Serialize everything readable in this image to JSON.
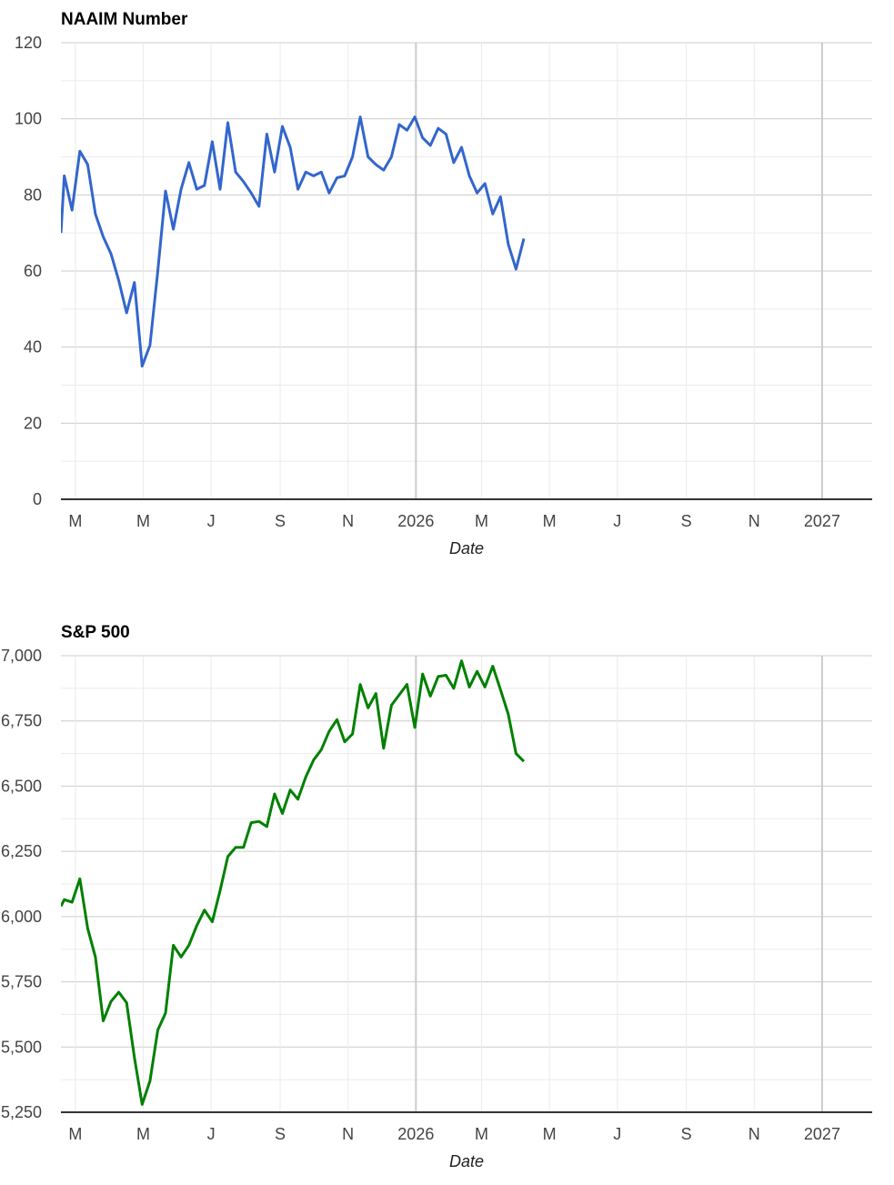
{
  "chart_data": [
    {
      "type": "line",
      "title": "NAAIM Number",
      "xlabel": "Date",
      "ylabel": "",
      "color": "#3366cc",
      "ylim": [
        0,
        120
      ],
      "yticks": [
        "0",
        "20",
        "40",
        "60",
        "80",
        "100",
        "120"
      ],
      "xlim": [
        "2025-02-16",
        "2027-02-15"
      ],
      "xticks": [
        {
          "date": "2025-03-01",
          "label": "M"
        },
        {
          "date": "2025-05-01",
          "label": "M"
        },
        {
          "date": "2025-07-01",
          "label": "J"
        },
        {
          "date": "2025-09-01",
          "label": "S"
        },
        {
          "date": "2025-11-01",
          "label": "N"
        },
        {
          "date": "2026-01-01",
          "label": "2026"
        },
        {
          "date": "2026-03-01",
          "label": "M"
        },
        {
          "date": "2026-05-01",
          "label": "M"
        },
        {
          "date": "2026-07-01",
          "label": "J"
        },
        {
          "date": "2026-09-01",
          "label": "S"
        },
        {
          "date": "2026-11-01",
          "label": "N"
        },
        {
          "date": "2027-01-01",
          "label": "2027"
        }
      ],
      "grid": true,
      "x": [
        "2025-02-16",
        "2025-02-19",
        "2025-02-26",
        "2025-03-05",
        "2025-03-12",
        "2025-03-19",
        "2025-03-26",
        "2025-04-02",
        "2025-04-09",
        "2025-04-16",
        "2025-04-23",
        "2025-04-30",
        "2025-05-07",
        "2025-05-14",
        "2025-05-21",
        "2025-05-28",
        "2025-06-04",
        "2025-06-11",
        "2025-06-18",
        "2025-06-25",
        "2025-07-02",
        "2025-07-09",
        "2025-07-16",
        "2025-07-23",
        "2025-07-30",
        "2025-08-06",
        "2025-08-13",
        "2025-08-20",
        "2025-08-27",
        "2025-09-03",
        "2025-09-10",
        "2025-09-17",
        "2025-09-24",
        "2025-10-01",
        "2025-10-08",
        "2025-10-15",
        "2025-10-22",
        "2025-10-29",
        "2025-11-05",
        "2025-11-12",
        "2025-11-19",
        "2025-11-26",
        "2025-12-03",
        "2025-12-10",
        "2025-12-17",
        "2025-12-24",
        "2025-12-31",
        "2026-01-07",
        "2026-01-14",
        "2026-01-21",
        "2026-01-28",
        "2026-02-04",
        "2026-02-11",
        "2026-02-18",
        "2026-02-25",
        "2026-03-04",
        "2026-03-11",
        "2026-03-18",
        "2026-03-25",
        "2026-04-01",
        "2026-04-08"
      ],
      "series": [
        {
          "values": [
            70,
            85,
            76,
            91.5,
            88,
            75,
            69,
            64.5,
            57.5,
            49,
            57,
            35,
            40.5,
            60,
            81,
            71,
            81.5,
            88.5,
            81.5,
            82.5,
            94,
            81.5,
            99,
            86,
            83.5,
            80.5,
            77,
            96,
            86,
            98,
            92.5,
            81.5,
            86,
            85,
            86,
            80.5,
            84.5,
            85,
            90,
            100.5,
            90,
            88,
            86.5,
            90,
            98.5,
            97,
            100.5,
            95,
            93,
            97.5,
            96,
            88.5,
            92.5,
            85,
            80.5,
            83,
            75,
            79.5,
            67,
            60.5,
            68.5
          ]
        }
      ]
    },
    {
      "type": "line",
      "title": "S&P 500",
      "xlabel": "Date",
      "ylabel": "",
      "color": "#008000",
      "ylim": [
        5250,
        7000
      ],
      "yticks": [
        "5,250",
        "5,500",
        "5,750",
        "6,000",
        "6,250",
        "6,500",
        "6,750",
        "7,000"
      ],
      "xlim": [
        "2025-02-16",
        "2027-02-15"
      ],
      "xticks": [
        {
          "date": "2025-03-01",
          "label": "M"
        },
        {
          "date": "2025-05-01",
          "label": "M"
        },
        {
          "date": "2025-07-01",
          "label": "J"
        },
        {
          "date": "2025-09-01",
          "label": "S"
        },
        {
          "date": "2025-11-01",
          "label": "N"
        },
        {
          "date": "2026-01-01",
          "label": "2026"
        },
        {
          "date": "2026-03-01",
          "label": "M"
        },
        {
          "date": "2026-05-01",
          "label": "M"
        },
        {
          "date": "2026-07-01",
          "label": "J"
        },
        {
          "date": "2026-09-01",
          "label": "S"
        },
        {
          "date": "2026-11-01",
          "label": "N"
        },
        {
          "date": "2027-01-01",
          "label": "2027"
        }
      ],
      "grid": true,
      "x": [
        "2025-02-16",
        "2025-02-19",
        "2025-02-26",
        "2025-03-05",
        "2025-03-12",
        "2025-03-19",
        "2025-03-26",
        "2025-04-02",
        "2025-04-09",
        "2025-04-16",
        "2025-04-23",
        "2025-04-30",
        "2025-05-07",
        "2025-05-14",
        "2025-05-21",
        "2025-05-28",
        "2025-06-04",
        "2025-06-11",
        "2025-06-18",
        "2025-06-25",
        "2025-07-02",
        "2025-07-09",
        "2025-07-16",
        "2025-07-23",
        "2025-07-30",
        "2025-08-06",
        "2025-08-13",
        "2025-08-20",
        "2025-08-27",
        "2025-09-03",
        "2025-09-10",
        "2025-09-17",
        "2025-09-24",
        "2025-10-01",
        "2025-10-08",
        "2025-10-15",
        "2025-10-22",
        "2025-10-29",
        "2025-11-05",
        "2025-11-12",
        "2025-11-19",
        "2025-11-26",
        "2025-12-03",
        "2025-12-10",
        "2025-12-17",
        "2025-12-24",
        "2025-12-31",
        "2026-01-07",
        "2026-01-14",
        "2026-01-21",
        "2026-01-28",
        "2026-02-04",
        "2026-02-11",
        "2026-02-18",
        "2026-02-25",
        "2026-03-04",
        "2026-03-11",
        "2026-03-18",
        "2026-03-25",
        "2026-04-01",
        "2026-04-08"
      ],
      "series": [
        {
          "values": [
            6040,
            6065,
            6055,
            6145,
            5955,
            5845,
            5600,
            5675,
            5710,
            5670,
            5460,
            5280,
            5370,
            5565,
            5630,
            5890,
            5845,
            5890,
            5965,
            6025,
            5980,
            6100,
            6230,
            6265,
            6265,
            6360,
            6365,
            6345,
            6470,
            6395,
            6485,
            6450,
            6535,
            6600,
            6640,
            6710,
            6755,
            6670,
            6700,
            6890,
            6800,
            6855,
            6645,
            6810,
            6850,
            6890,
            6725,
            6930,
            6845,
            6920,
            6925,
            6875,
            6980,
            6880,
            6940,
            6880,
            6960,
            6870,
            6775,
            6625,
            6595
          ]
        }
      ]
    }
  ]
}
